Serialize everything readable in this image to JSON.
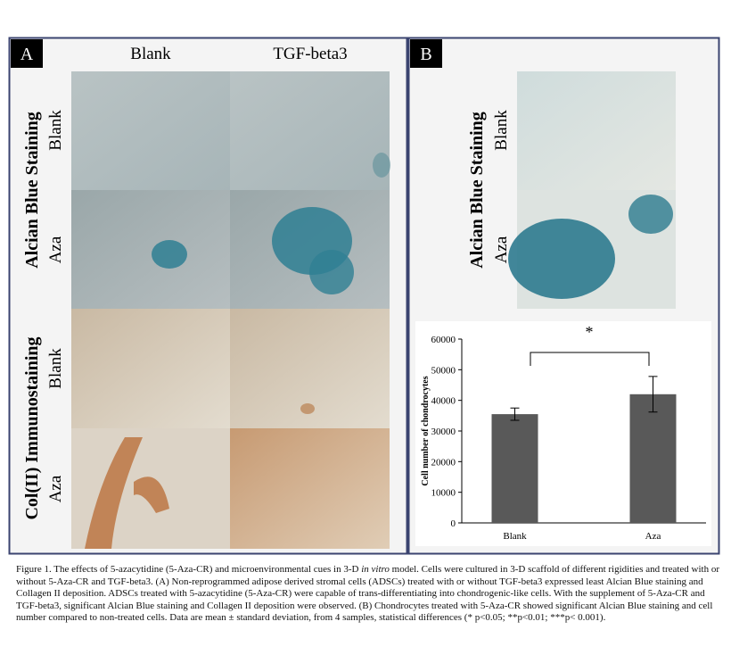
{
  "panel_a": {
    "label": "A",
    "columns": [
      "Blank",
      "TGF-beta3"
    ],
    "row_groups": [
      {
        "title": "Alcian Blue Staining",
        "rows": [
          "Blank",
          "Aza"
        ]
      },
      {
        "title": "Col(II) Immunostaining",
        "rows": [
          "Blank",
          "Aza"
        ]
      }
    ]
  },
  "panel_b": {
    "label": "B",
    "row_group": {
      "title": "Alcian Blue Staining",
      "rows": [
        "Blank",
        "Aza"
      ]
    }
  },
  "chart_data": {
    "type": "bar",
    "ylabel": "Cell number of chondrocytes",
    "categories": [
      "Blank",
      "Aza"
    ],
    "values": [
      35500,
      42000
    ],
    "errors": [
      2000,
      5800
    ],
    "color": "#595959",
    "ylim": [
      0,
      60000
    ],
    "yticks": [
      0,
      10000,
      20000,
      30000,
      40000,
      50000,
      60000
    ],
    "annotation": "*"
  },
  "caption": [
    "Figure 1. The effects of 5-azacytidine (5-Aza-CR) and microenvironmental cues in 3-D ",
    "in vitro",
    " model. Cells were cultured in 3-D scaffold of different rigidities and treated with or without 5-Aza-CR and TGF-beta3. (A) Non-reprogrammed adipose derived stromal cells (ADSCs) treated with or without TGF-beta3 expressed least Alcian Blue staining and Collagen II deposition. ADSCs treated with 5-azacytidine (5-Aza-CR) were capable of trans-differentiating into chondrogenic-like cells. With the supplement of 5-Aza-CR and TGF-beta3, significant Alcian Blue staining and Collagen II deposition were observed. (B) Chondrocytes treated with 5-Aza-CR showed significant Alcian Blue staining and cell number compared to non-treated cells. Data are mean ± standard deviation, from 4 samples, statistical differences (* p<0.05; **p<0.01; ***p< 0.001)."
  ]
}
